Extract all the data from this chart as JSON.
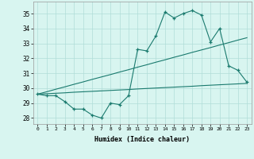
{
  "x": [
    0,
    1,
    2,
    3,
    4,
    5,
    6,
    7,
    8,
    9,
    10,
    11,
    12,
    13,
    14,
    15,
    16,
    17,
    18,
    19,
    20,
    21,
    22,
    23
  ],
  "y_main": [
    29.6,
    29.5,
    29.5,
    29.1,
    28.6,
    28.6,
    28.2,
    28.0,
    29.0,
    28.9,
    29.5,
    32.6,
    32.5,
    33.5,
    35.1,
    34.7,
    35.0,
    35.2,
    34.9,
    33.1,
    34.0,
    31.5,
    31.2,
    30.4
  ],
  "y_upper_line": [
    29.6,
    29.76,
    29.93,
    30.09,
    30.26,
    30.42,
    30.59,
    30.75,
    30.91,
    31.08,
    31.24,
    31.41,
    31.57,
    31.74,
    31.9,
    32.07,
    32.23,
    32.4,
    32.56,
    32.72,
    32.89,
    33.05,
    33.22,
    33.38
  ],
  "y_lower_line": [
    29.6,
    29.63,
    29.66,
    29.69,
    29.73,
    29.76,
    29.79,
    29.82,
    29.85,
    29.88,
    29.91,
    29.95,
    29.98,
    30.01,
    30.04,
    30.07,
    30.1,
    30.13,
    30.17,
    30.2,
    30.23,
    30.26,
    30.29,
    30.32
  ],
  "color": "#1a7a6e",
  "bg_color": "#d8f5f0",
  "grid_color": "#b0ddd8",
  "xlabel": "Humidex (Indice chaleur)",
  "ylabel_ticks": [
    28,
    29,
    30,
    31,
    32,
    33,
    34,
    35
  ],
  "xlim": [
    -0.5,
    23.5
  ],
  "ylim": [
    27.6,
    35.8
  ]
}
